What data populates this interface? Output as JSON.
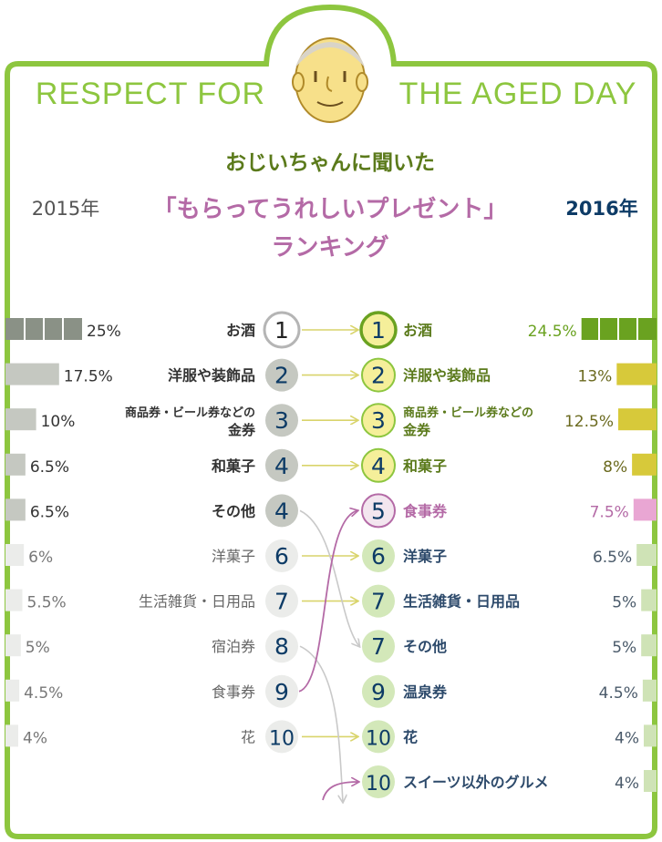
{
  "header": {
    "title": "Respect for the Aged Day",
    "subtitle": "おじいちゃんに聞いた",
    "heading": "「もらってうれしいプレゼント」",
    "heading2": "ランキング",
    "year_left": "2015年",
    "year_right": "2016年"
  },
  "colors": {
    "frame": "#8dc63f",
    "title": "#8dc63f",
    "subtitle": "#5b7a1b",
    "heading": "#b46aa6",
    "year": "#0d3b66",
    "arrow_yellow": "#d9d46b",
    "arrow_purple": "#b46aa6",
    "arrow_gray": "#cfcfcf"
  },
  "chart_data": {
    "type": "table",
    "title": "おじいちゃんに聞いた「もらってうれしいプレゼント」ランキング",
    "unit": "%",
    "y2015": [
      {
        "rank": "1",
        "label": "お酒",
        "value": 25,
        "display": "25%"
      },
      {
        "rank": "2",
        "label": "洋服や装飾品",
        "value": 17.5,
        "display": "17.5%"
      },
      {
        "rank": "3",
        "label_lines": [
          "商品券・ビール券などの",
          "金券"
        ],
        "value": 10,
        "display": "10%"
      },
      {
        "rank": "4",
        "label": "和菓子",
        "value": 6.5,
        "display": "6.5%"
      },
      {
        "rank": "4",
        "label": "その他",
        "value": 6.5,
        "display": "6.5%"
      },
      {
        "rank": "6",
        "label": "洋菓子",
        "value": 6,
        "display": "6%"
      },
      {
        "rank": "7",
        "label": "生活雑貨・日用品",
        "value": 5.5,
        "display": "5.5%"
      },
      {
        "rank": "8",
        "label": "宿泊券",
        "value": 5,
        "display": "5%"
      },
      {
        "rank": "9",
        "label": "食事券",
        "value": 4.5,
        "display": "4.5%"
      },
      {
        "rank": "10",
        "label": "花",
        "value": 4,
        "display": "4%"
      }
    ],
    "y2016": [
      {
        "rank": "1",
        "label": "お酒",
        "value": 24.5,
        "display": "24.5%"
      },
      {
        "rank": "2",
        "label": "洋服や装飾品",
        "value": 13,
        "display": "13%"
      },
      {
        "rank": "3",
        "label_lines": [
          "商品券・ビール券などの",
          "金券"
        ],
        "value": 12.5,
        "display": "12.5%"
      },
      {
        "rank": "4",
        "label": "和菓子",
        "value": 8,
        "display": "8%"
      },
      {
        "rank": "5",
        "label": "食事券",
        "value": 7.5,
        "display": "7.5%"
      },
      {
        "rank": "6",
        "label": "洋菓子",
        "value": 6.5,
        "display": "6.5%"
      },
      {
        "rank": "7",
        "label": "生活雑貨・日用品",
        "value": 5,
        "display": "5%"
      },
      {
        "rank": "7",
        "label": "その他",
        "value": 5,
        "display": "5%"
      },
      {
        "rank": "9",
        "label": "温泉券",
        "value": 4.5,
        "display": "4.5%"
      },
      {
        "rank": "10",
        "label": "花",
        "value": 4,
        "display": "4%"
      },
      {
        "rank": "10",
        "label": "スイーツ以外のグルメ",
        "value": 4,
        "display": "4%"
      }
    ]
  }
}
